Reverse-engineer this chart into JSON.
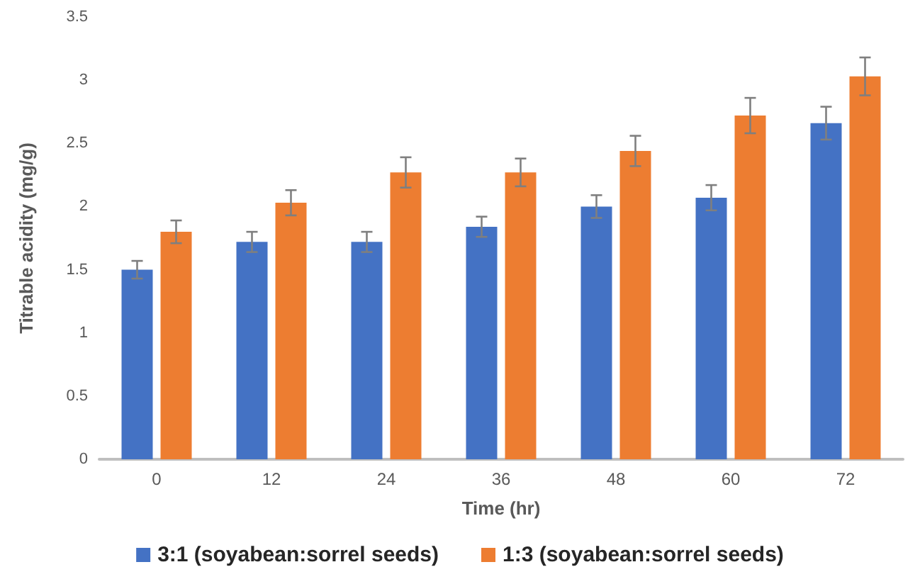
{
  "chart_data": {
    "type": "bar",
    "xlabel": "Time (hr)",
    "ylabel": "Titrable acidity (mg/g)",
    "categories": [
      "0",
      "12",
      "24",
      "36",
      "48",
      "60",
      "72"
    ],
    "series": [
      {
        "name": "3:1 (soyabean:sorrel seeds)",
        "color": "#4472c4",
        "values": [
          1.5,
          1.72,
          1.72,
          1.84,
          2.0,
          2.07,
          2.66
        ],
        "errors": [
          0.07,
          0.08,
          0.08,
          0.08,
          0.09,
          0.1,
          0.13
        ]
      },
      {
        "name": "1:3 (soyabean:sorrel seeds)",
        "color": "#ed7d31",
        "values": [
          1.8,
          2.03,
          2.27,
          2.27,
          2.44,
          2.72,
          3.03
        ],
        "errors": [
          0.09,
          0.1,
          0.12,
          0.11,
          0.12,
          0.14,
          0.15
        ]
      }
    ],
    "ylim": [
      0,
      3.5
    ],
    "yticks": [
      0,
      0.5,
      1,
      1.5,
      2,
      2.5,
      3,
      3.5
    ],
    "grid": false,
    "legend": "bottom"
  }
}
